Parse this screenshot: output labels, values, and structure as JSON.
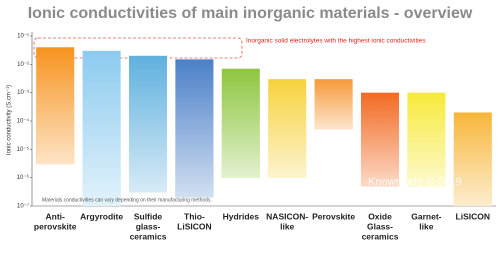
{
  "chart_data": {
    "type": "range_bar",
    "title": "Ionic conductivities of main inorganic materials - overview",
    "y_label": "Ionic conductivity (S.cm⁻¹)",
    "annotation": "Inorganic solid electrolytes with the highest ionic conductivities",
    "note": "Materials conductivities can vary depending on their manufacturing methods.",
    "watermark": "Knowmade © 2019",
    "log_scale": true,
    "categories": [
      [
        "Anti-",
        "perovskite"
      ],
      [
        "Argyrodite"
      ],
      [
        "Sulfide",
        "glass-",
        "ceramics"
      ],
      [
        "Thio-",
        "LiSICON"
      ],
      [
        "Hydrides"
      ],
      [
        "NASICON-",
        "like"
      ],
      [
        "Perovskite"
      ],
      [
        "Oxide",
        "Glass-",
        "ceramics"
      ],
      [
        "Garnet-",
        "like"
      ],
      [
        "LiSICON"
      ]
    ],
    "high": [
      0.04,
      0.03,
      0.02,
      0.015,
      0.007,
      0.003,
      0.003,
      0.001,
      0.001,
      0.0002
    ],
    "low": [
      3e-06,
      1e-07,
      3e-07,
      2e-07,
      1e-06,
      1e-06,
      5e-05,
      5e-07,
      5e-07,
      1e-07
    ],
    "colors": [
      "#f7931e",
      "#8ccbef",
      "#5fb0de",
      "#4a80c8",
      "#8dc63f",
      "#f7d23c",
      "#f79a3a",
      "#f26a22",
      "#f7ea3a",
      "#f7b63a"
    ],
    "ylim": [
      1e-07,
      0.1
    ],
    "yticks": [
      {
        "value": 0.1,
        "label": "10⁻¹"
      },
      {
        "value": 0.01,
        "label": "10⁻²"
      },
      {
        "value": 0.001,
        "label": "10⁻³"
      },
      {
        "value": 0.0001,
        "label": "10⁻⁴"
      },
      {
        "value": 1e-05,
        "label": "10⁻⁵"
      },
      {
        "value": 1e-06,
        "label": "10⁻⁶"
      },
      {
        "value": 1e-07,
        "label": "10⁻⁷"
      }
    ]
  }
}
